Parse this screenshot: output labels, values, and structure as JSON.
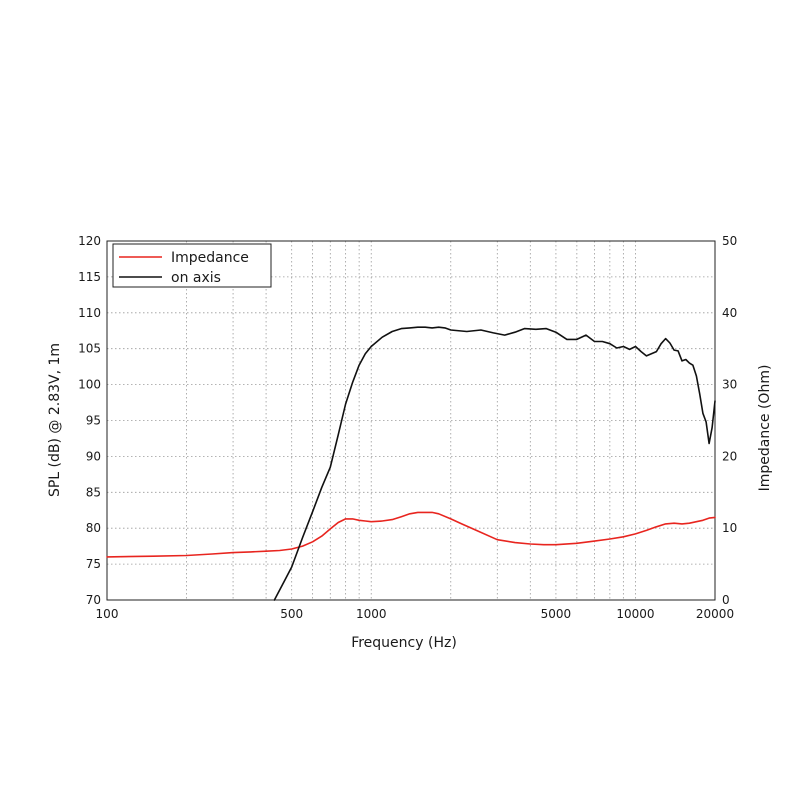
{
  "chart_data": {
    "type": "line",
    "xlabel": "Frequency (Hz)",
    "ylabel_left": "SPL (dB) @ 2.83V, 1m",
    "ylabel_right": "Impedance (Ohm)",
    "x_scale": "log",
    "xlim": [
      100,
      20000
    ],
    "ylim_left": [
      70,
      120
    ],
    "ylim_right": [
      0,
      50
    ],
    "grid": true,
    "legend_position": "top-left",
    "x_ticks": [
      {
        "value": 100,
        "label": "100"
      },
      {
        "value": 500,
        "label": "500"
      },
      {
        "value": 1000,
        "label": "1000"
      },
      {
        "value": 5000,
        "label": "5000"
      },
      {
        "value": 10000,
        "label": "10000"
      },
      {
        "value": 20000,
        "label": "20000"
      }
    ],
    "y_ticks_left": [
      "70",
      "75",
      "80",
      "85",
      "90",
      "95",
      "100",
      "105",
      "110",
      "115",
      "120"
    ],
    "y_ticks_right": [
      "0",
      "10",
      "20",
      "30",
      "40",
      "50"
    ],
    "series": [
      {
        "name": "Impedance",
        "color": "#e8251f",
        "axis": "right",
        "points": [
          [
            100,
            6.0
          ],
          [
            150,
            6.1
          ],
          [
            200,
            6.2
          ],
          [
            250,
            6.4
          ],
          [
            300,
            6.6
          ],
          [
            350,
            6.7
          ],
          [
            400,
            6.8
          ],
          [
            450,
            6.9
          ],
          [
            500,
            7.1
          ],
          [
            550,
            7.5
          ],
          [
            600,
            8.1
          ],
          [
            650,
            8.9
          ],
          [
            700,
            9.9
          ],
          [
            750,
            10.8
          ],
          [
            800,
            11.3
          ],
          [
            850,
            11.3
          ],
          [
            900,
            11.1
          ],
          [
            950,
            11.0
          ],
          [
            1000,
            10.9
          ],
          [
            1100,
            11.0
          ],
          [
            1200,
            11.2
          ],
          [
            1300,
            11.6
          ],
          [
            1400,
            12.0
          ],
          [
            1500,
            12.2
          ],
          [
            1600,
            12.2
          ],
          [
            1700,
            12.2
          ],
          [
            1800,
            12.0
          ],
          [
            2000,
            11.3
          ],
          [
            2200,
            10.6
          ],
          [
            2500,
            9.7
          ],
          [
            3000,
            8.4
          ],
          [
            3500,
            8.0
          ],
          [
            4000,
            7.8
          ],
          [
            4500,
            7.7
          ],
          [
            5000,
            7.7
          ],
          [
            6000,
            7.9
          ],
          [
            7000,
            8.2
          ],
          [
            8000,
            8.5
          ],
          [
            9000,
            8.8
          ],
          [
            10000,
            9.2
          ],
          [
            11000,
            9.7
          ],
          [
            12000,
            10.2
          ],
          [
            13000,
            10.6
          ],
          [
            14000,
            10.7
          ],
          [
            15000,
            10.6
          ],
          [
            16000,
            10.7
          ],
          [
            17000,
            10.9
          ],
          [
            18000,
            11.1
          ],
          [
            19000,
            11.4
          ],
          [
            20000,
            11.5
          ]
        ]
      },
      {
        "name": "on axis",
        "color": "#111111",
        "axis": "left",
        "points": [
          [
            430,
            70.0
          ],
          [
            470,
            72.7
          ],
          [
            500,
            74.6
          ],
          [
            550,
            78.7
          ],
          [
            600,
            82.3
          ],
          [
            650,
            85.7
          ],
          [
            700,
            88.5
          ],
          [
            750,
            93.0
          ],
          [
            800,
            97.3
          ],
          [
            850,
            100.3
          ],
          [
            900,
            102.7
          ],
          [
            950,
            104.3
          ],
          [
            1000,
            105.3
          ],
          [
            1100,
            106.6
          ],
          [
            1200,
            107.4
          ],
          [
            1300,
            107.8
          ],
          [
            1400,
            107.9
          ],
          [
            1500,
            108.0
          ],
          [
            1600,
            108.0
          ],
          [
            1700,
            107.9
          ],
          [
            1800,
            108.0
          ],
          [
            1900,
            107.9
          ],
          [
            2000,
            107.6
          ],
          [
            2300,
            107.4
          ],
          [
            2600,
            107.6
          ],
          [
            2900,
            107.2
          ],
          [
            3200,
            106.9
          ],
          [
            3500,
            107.3
          ],
          [
            3800,
            107.8
          ],
          [
            4200,
            107.7
          ],
          [
            4600,
            107.8
          ],
          [
            5000,
            107.3
          ],
          [
            5500,
            106.3
          ],
          [
            6000,
            106.3
          ],
          [
            6500,
            106.9
          ],
          [
            7000,
            106.0
          ],
          [
            7500,
            106.0
          ],
          [
            8000,
            105.7
          ],
          [
            8500,
            105.1
          ],
          [
            9000,
            105.3
          ],
          [
            9500,
            104.9
          ],
          [
            10000,
            105.3
          ],
          [
            10500,
            104.6
          ],
          [
            11000,
            104.0
          ],
          [
            12000,
            104.6
          ],
          [
            12500,
            105.7
          ],
          [
            13000,
            106.4
          ],
          [
            13500,
            105.8
          ],
          [
            14000,
            104.8
          ],
          [
            14500,
            104.7
          ],
          [
            15000,
            103.3
          ],
          [
            15500,
            103.5
          ],
          [
            16000,
            103.0
          ],
          [
            16500,
            102.7
          ],
          [
            17000,
            101.2
          ],
          [
            17500,
            98.7
          ],
          [
            18000,
            96.0
          ],
          [
            18500,
            94.8
          ],
          [
            19000,
            91.8
          ],
          [
            19500,
            94.0
          ],
          [
            20000,
            97.7
          ]
        ]
      }
    ]
  }
}
